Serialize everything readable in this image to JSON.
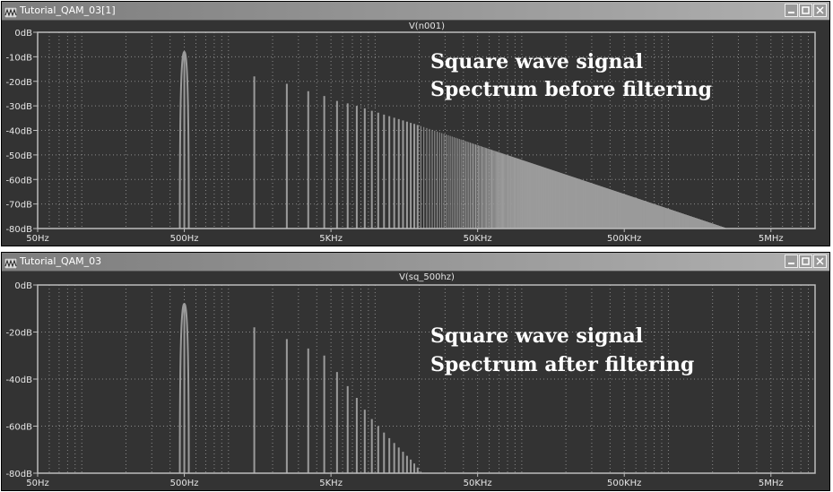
{
  "windows": [
    {
      "title": "Tutorial_QAM_03[1]",
      "trace_label": "V(n001)",
      "annotation": [
        "Square wave signal",
        "Spectrum before filtering"
      ]
    },
    {
      "title": "Tutorial_QAM_03",
      "trace_label": "V(sq_500hz)",
      "annotation": [
        "Square wave signal",
        "Spectrum after filtering"
      ]
    }
  ],
  "colors": {
    "plot_bg": "#333333",
    "trace": "#9b9b9b",
    "grid": "#8a8a8a",
    "frame": "#bdbdbd",
    "annotation": "#ffffff"
  },
  "icons": {
    "title_icon": "waveform-icon",
    "buttons": [
      "minimize-icon",
      "maximize-icon",
      "close-icon"
    ]
  },
  "chart_data": [
    {
      "type": "line",
      "title": "V(n001)",
      "xscale": "log",
      "xlim": [
        50,
        10000000
      ],
      "ylim": [
        -80,
        0
      ],
      "x_tick_labels": [
        "50Hz",
        "500Hz",
        "5KHz",
        "50KHz",
        "500KHz",
        "5MHz"
      ],
      "x_tick_values": [
        50,
        500,
        5000,
        50000,
        500000,
        5000000
      ],
      "y_tick_labels": [
        "0dB",
        "-10dB",
        "-20dB",
        "-30dB",
        "-40dB",
        "-50dB",
        "-60dB",
        "-70dB",
        "-80dB"
      ],
      "y_tick_values": [
        0,
        -10,
        -20,
        -30,
        -40,
        -50,
        -60,
        -70,
        -80
      ],
      "grid": true,
      "harmonic_peaks": [
        {
          "x": 500,
          "y": -8
        },
        {
          "x": 1500,
          "y": -18
        },
        {
          "x": 2500,
          "y": -21
        },
        {
          "x": 3500,
          "y": -24
        },
        {
          "x": 4500,
          "y": -26
        },
        {
          "x": 5500,
          "y": -28
        },
        {
          "x": 6500,
          "y": -29
        },
        {
          "x": 7500,
          "y": -30
        },
        {
          "x": 8500,
          "y": -31
        },
        {
          "x": 9500,
          "y": -32
        },
        {
          "x": 20000,
          "y": -38
        },
        {
          "x": 50000,
          "y": -46
        },
        {
          "x": 500000,
          "y": -66
        },
        {
          "x": 2500000,
          "y": -80
        }
      ]
    },
    {
      "type": "line",
      "title": "V(sq_500hz)",
      "xscale": "log",
      "xlim": [
        50,
        10000000
      ],
      "ylim": [
        -80,
        0
      ],
      "x_tick_labels": [
        "50Hz",
        "500Hz",
        "5KHz",
        "50KHz",
        "500KHz",
        "5MHz"
      ],
      "x_tick_values": [
        50,
        500,
        5000,
        50000,
        500000,
        5000000
      ],
      "y_tick_labels": [
        "0dB",
        "-20dB",
        "-40dB",
        "-60dB",
        "-80dB"
      ],
      "y_tick_values": [
        0,
        -20,
        -40,
        -60,
        -80
      ],
      "grid": true,
      "harmonic_peaks": [
        {
          "x": 500,
          "y": -8
        },
        {
          "x": 1500,
          "y": -18
        },
        {
          "x": 2500,
          "y": -23
        },
        {
          "x": 3500,
          "y": -27
        },
        {
          "x": 4500,
          "y": -30
        },
        {
          "x": 5500,
          "y": -37
        },
        {
          "x": 6500,
          "y": -43
        },
        {
          "x": 7500,
          "y": -48
        },
        {
          "x": 8500,
          "y": -53
        },
        {
          "x": 9500,
          "y": -57
        },
        {
          "x": 12000,
          "y": -64
        },
        {
          "x": 15000,
          "y": -70
        },
        {
          "x": 18000,
          "y": -75
        },
        {
          "x": 21000,
          "y": -80
        }
      ]
    }
  ]
}
